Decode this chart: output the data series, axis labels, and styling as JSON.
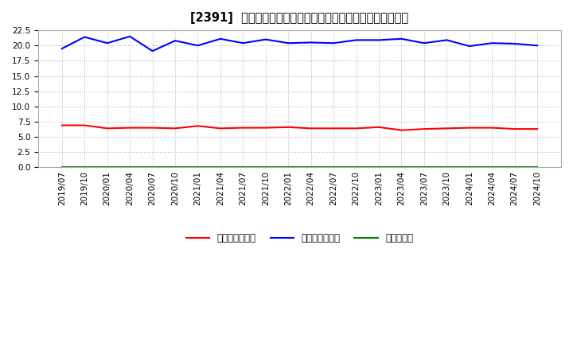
{
  "title": "[2391]  売上債権回転率、買入債務回転率、在庫回転率の推移",
  "x_labels": [
    "2019/07",
    "2019/10",
    "2020/01",
    "2020/04",
    "2020/07",
    "2020/10",
    "2021/01",
    "2021/04",
    "2021/07",
    "2021/10",
    "2022/01",
    "2022/04",
    "2022/07",
    "2022/10",
    "2023/01",
    "2023/04",
    "2023/07",
    "2023/10",
    "2024/01",
    "2024/04",
    "2024/07",
    "2024/10"
  ],
  "receivables_turnover": [
    6.9,
    6.9,
    6.4,
    6.5,
    6.5,
    6.4,
    6.8,
    6.4,
    6.5,
    6.5,
    6.6,
    6.4,
    6.4,
    6.4,
    6.6,
    6.1,
    6.3,
    6.4,
    6.5,
    6.5,
    6.3,
    6.3
  ],
  "payables_turnover": [
    19.5,
    21.4,
    20.4,
    21.5,
    19.1,
    20.8,
    20.0,
    21.1,
    20.4,
    21.0,
    20.4,
    20.5,
    20.4,
    20.9,
    20.9,
    21.1,
    20.4,
    20.9,
    19.9,
    20.4,
    20.3,
    20.0
  ],
  "inventory_turnover": [
    0.0,
    0.0,
    0.0,
    0.0,
    0.0,
    0.0,
    0.0,
    0.0,
    0.0,
    0.0,
    0.0,
    0.0,
    0.0,
    0.0,
    0.0,
    0.0,
    0.0,
    0.0,
    0.0,
    0.0,
    0.0,
    0.0
  ],
  "line_colors": {
    "receivables": "#ff0000",
    "payables": "#0000ff",
    "inventory": "#008000"
  },
  "legend_labels": {
    "receivables": "売上債権回転率",
    "payables": "買入債務回転率",
    "inventory": "在庫回転率"
  },
  "ylim": [
    0.0,
    22.5
  ],
  "yticks": [
    0.0,
    2.5,
    5.0,
    7.5,
    10.0,
    12.5,
    15.0,
    17.5,
    20.0,
    22.5
  ],
  "background_color": "#ffffff",
  "grid_color": "#999999",
  "title_fontsize": 10.5,
  "axis_fontsize": 7.5,
  "legend_fontsize": 8.5
}
